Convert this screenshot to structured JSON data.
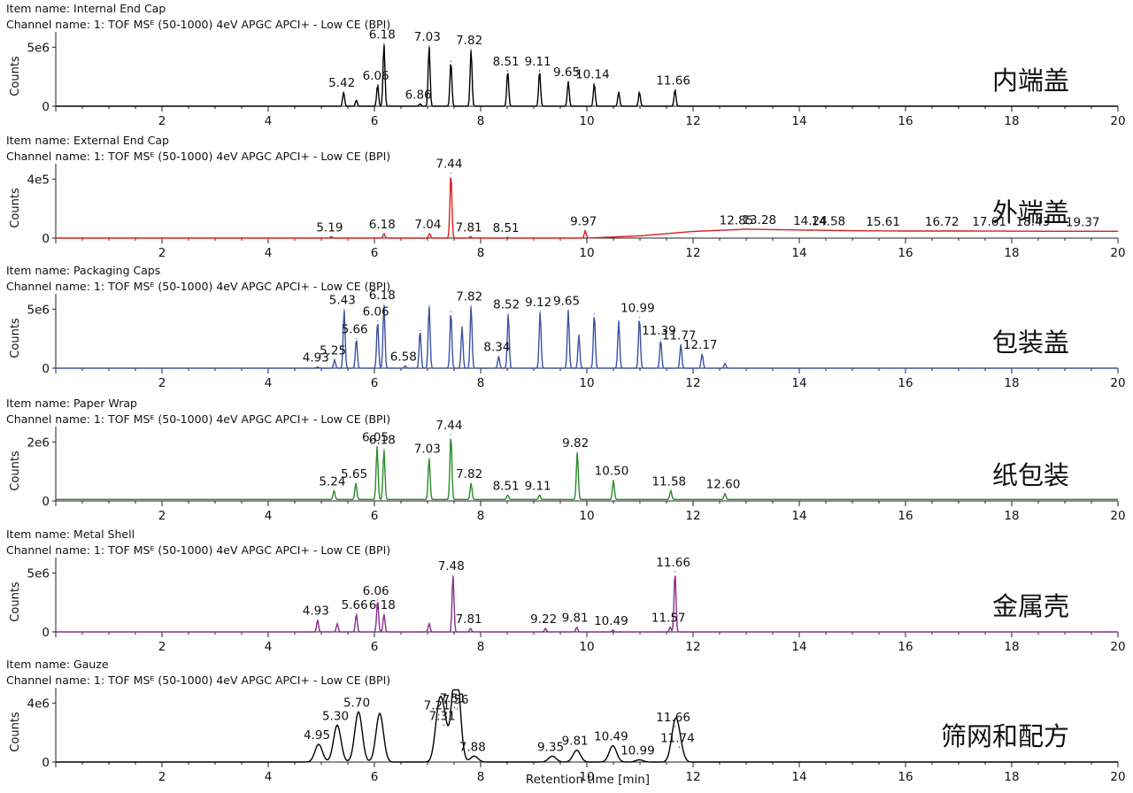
{
  "x_axis_label": "Retention time [min]",
  "chart_data": [
    {
      "type": "line",
      "item_name": "Item name: Internal End Cap",
      "channel_name": "Channel name: 1: TOF MSᴱ (50-1000) 4eV APGC APCI+ - Low CE (BPI)",
      "chinese_label": "内端盖",
      "color": "#000000",
      "ylabel": "Counts",
      "y_tick_label": "5e6",
      "y_tick_value": 5000000,
      "ylim": [
        0,
        6000000
      ],
      "xlim": [
        0,
        20
      ],
      "x_ticks": [
        "2",
        "4",
        "6",
        "8",
        "10",
        "12",
        "14",
        "16",
        "18",
        "20"
      ],
      "series": [
        {
          "baseline": 0,
          "peaks": [
            {
              "rt": 5.42,
              "height": 1200000,
              "label": "5.42"
            },
            {
              "rt": 5.66,
              "height": 500000,
              "label": ""
            },
            {
              "rt": 6.06,
              "height": 1800000,
              "label": "6.06"
            },
            {
              "rt": 6.18,
              "height": 5300000,
              "label": "6.18"
            },
            {
              "rt": 6.86,
              "height": 200000,
              "label": "6.86"
            },
            {
              "rt": 7.03,
              "height": 5100000,
              "label": "7.03"
            },
            {
              "rt": 7.44,
              "height": 3800000,
              "label": ""
            },
            {
              "rt": 7.82,
              "height": 4800000,
              "label": "7.82"
            },
            {
              "rt": 8.51,
              "height": 3000000,
              "label": "8.51"
            },
            {
              "rt": 9.11,
              "height": 3000000,
              "label": "9.11"
            },
            {
              "rt": 9.65,
              "height": 2100000,
              "label": "9.65"
            },
            {
              "rt": 10.14,
              "height": 1900000,
              "label": "10.14"
            },
            {
              "rt": 10.6,
              "height": 1200000,
              "label": ""
            },
            {
              "rt": 10.99,
              "height": 1200000,
              "label": ""
            },
            {
              "rt": 11.66,
              "height": 1400000,
              "label": "11.66"
            }
          ]
        }
      ]
    },
    {
      "type": "line",
      "item_name": "Item name: External End Cap",
      "channel_name": "Channel name: 1: TOF MSᴱ (50-1000) 4eV APGC APCI+ - Low CE (BPI)",
      "chinese_label": "外端盖",
      "color": "#d81f1f",
      "ylabel": "Counts",
      "y_tick_label": "4e5",
      "y_tick_value": 400000,
      "ylim": [
        0,
        480000
      ],
      "xlim": [
        0,
        20
      ],
      "x_ticks": [
        "2",
        "4",
        "6",
        "8",
        "10",
        "12",
        "14",
        "16",
        "18",
        "20"
      ],
      "series": [
        {
          "baseline_points": [
            [
              0,
              0
            ],
            [
              10,
              0
            ],
            [
              11,
              15000
            ],
            [
              12,
              45000
            ],
            [
              13,
              60000
            ],
            [
              14,
              55000
            ],
            [
              15,
              50000
            ],
            [
              16,
              48000
            ],
            [
              17,
              48000
            ],
            [
              18,
              47000
            ],
            [
              19,
              46000
            ],
            [
              20,
              46000
            ]
          ],
          "peaks": [
            {
              "rt": 5.19,
              "height": 10000,
              "label": "5.19"
            },
            {
              "rt": 6.18,
              "height": 30000,
              "label": "6.18"
            },
            {
              "rt": 7.04,
              "height": 30000,
              "label": "7.04"
            },
            {
              "rt": 7.44,
              "height": 440000,
              "label": "7.44"
            },
            {
              "rt": 7.81,
              "height": 10000,
              "label": "7.81"
            },
            {
              "rt": 8.51,
              "height": 5000,
              "label": "8.51"
            },
            {
              "rt": 9.97,
              "height": 50000,
              "label": "9.97"
            },
            {
              "rt": 12.85,
              "height": 0,
              "label": "12.85"
            },
            {
              "rt": 13.28,
              "height": 0,
              "label": "13.28"
            },
            {
              "rt": 14.24,
              "height": 0,
              "label": "14.24"
            },
            {
              "rt": 14.58,
              "height": 0,
              "label": "14.58"
            },
            {
              "rt": 15.61,
              "height": 0,
              "label": "15.61"
            },
            {
              "rt": 16.72,
              "height": 0,
              "label": "16.72"
            },
            {
              "rt": 17.61,
              "height": 0,
              "label": "17.61"
            },
            {
              "rt": 18.43,
              "height": 0,
              "label": "18.43"
            },
            {
              "rt": 19.37,
              "height": 0,
              "label": "19.37"
            }
          ]
        }
      ]
    },
    {
      "type": "line",
      "item_name": "Item name: Packaging Caps",
      "channel_name": "Channel name: 1: TOF MSᴱ (50-1000) 4eV APGC APCI+ - Low CE (BPI)",
      "chinese_label": "包装盖",
      "color": "#3b52a3",
      "ylabel": "Counts",
      "y_tick_label": "5e6",
      "y_tick_value": 5000000,
      "ylim": [
        0,
        6000000
      ],
      "xlim": [
        0,
        20
      ],
      "x_ticks": [
        "2",
        "4",
        "6",
        "8",
        "10",
        "12",
        "14",
        "16",
        "18",
        "20"
      ],
      "series": [
        {
          "baseline": 0,
          "peaks": [
            {
              "rt": 4.93,
              "height": 100000,
              "label": "4.93"
            },
            {
              "rt": 5.25,
              "height": 700000,
              "label": "5.25"
            },
            {
              "rt": 5.43,
              "height": 5000000,
              "label": "5.43"
            },
            {
              "rt": 5.66,
              "height": 2500000,
              "label": "5.66"
            },
            {
              "rt": 6.06,
              "height": 4000000,
              "label": "6.06"
            },
            {
              "rt": 6.18,
              "height": 5400000,
              "label": "6.18"
            },
            {
              "rt": 6.58,
              "height": 200000,
              "label": "6.58"
            },
            {
              "rt": 6.86,
              "height": 3200000,
              "label": ""
            },
            {
              "rt": 7.03,
              "height": 5300000,
              "label": ""
            },
            {
              "rt": 7.44,
              "height": 4800000,
              "label": ""
            },
            {
              "rt": 7.65,
              "height": 3500000,
              "label": ""
            },
            {
              "rt": 7.82,
              "height": 5300000,
              "label": "7.82"
            },
            {
              "rt": 8.34,
              "height": 1000000,
              "label": "8.34"
            },
            {
              "rt": 8.52,
              "height": 4600000,
              "label": "8.52"
            },
            {
              "rt": 9.12,
              "height": 4800000,
              "label": "9.12"
            },
            {
              "rt": 9.65,
              "height": 4900000,
              "label": "9.65"
            },
            {
              "rt": 9.85,
              "height": 2800000,
              "label": ""
            },
            {
              "rt": 10.14,
              "height": 4600000,
              "label": ""
            },
            {
              "rt": 10.6,
              "height": 4000000,
              "label": ""
            },
            {
              "rt": 10.99,
              "height": 4300000,
              "label": "10.99"
            },
            {
              "rt": 11.39,
              "height": 2400000,
              "label": "11.39"
            },
            {
              "rt": 11.77,
              "height": 2000000,
              "label": "11.77"
            },
            {
              "rt": 12.17,
              "height": 1200000,
              "label": "12.17"
            },
            {
              "rt": 12.6,
              "height": 400000,
              "label": ""
            }
          ]
        }
      ]
    },
    {
      "type": "line",
      "item_name": "Item name: Paper Wrap",
      "channel_name": "Channel name: 1: TOF MSᴱ (50-1000) 4eV APGC APCI+ - Low CE (BPI)",
      "chinese_label": "纸包装",
      "color": "#2a8a2a",
      "ylabel": "Counts",
      "y_tick_label": "2e6",
      "y_tick_value": 2000000,
      "ylim": [
        0,
        2400000
      ],
      "xlim": [
        0,
        20
      ],
      "x_ticks": [
        "2",
        "4",
        "6",
        "8",
        "10",
        "12",
        "14",
        "16",
        "18",
        "20"
      ],
      "series": [
        {
          "baseline": 50000,
          "peaks": [
            {
              "rt": 5.24,
              "height": 300000,
              "label": "5.24"
            },
            {
              "rt": 5.65,
              "height": 550000,
              "label": "5.65"
            },
            {
              "rt": 6.05,
              "height": 1800000,
              "label": "6.05"
            },
            {
              "rt": 6.18,
              "height": 1700000,
              "label": "6.18"
            },
            {
              "rt": 7.03,
              "height": 1400000,
              "label": "7.03"
            },
            {
              "rt": 7.44,
              "height": 2200000,
              "label": "7.44"
            },
            {
              "rt": 7.82,
              "height": 550000,
              "label": "7.82"
            },
            {
              "rt": 8.51,
              "height": 150000,
              "label": "8.51"
            },
            {
              "rt": 9.11,
              "height": 150000,
              "label": "9.11"
            },
            {
              "rt": 9.82,
              "height": 1600000,
              "label": "9.82"
            },
            {
              "rt": 10.5,
              "height": 650000,
              "label": "10.50"
            },
            {
              "rt": 11.58,
              "height": 300000,
              "label": "11.58"
            },
            {
              "rt": 12.6,
              "height": 200000,
              "label": "12.60"
            }
          ]
        }
      ]
    },
    {
      "type": "line",
      "item_name": "Item name: Metal Shell",
      "channel_name": "Channel name: 1: TOF MSᴱ (50-1000) 4eV APGC APCI+ - Low CE (BPI)",
      "chinese_label": "金属壳",
      "color": "#8a2b8a",
      "ylabel": "Counts",
      "y_tick_label": "5e6",
      "y_tick_value": 5000000,
      "ylim": [
        0,
        6000000
      ],
      "xlim": [
        0,
        20
      ],
      "x_ticks": [
        "2",
        "4",
        "6",
        "8",
        "10",
        "12",
        "14",
        "16",
        "18",
        "20"
      ],
      "series": [
        {
          "baseline": 0,
          "peaks": [
            {
              "rt": 4.93,
              "height": 1000000,
              "label": "4.93"
            },
            {
              "rt": 5.3,
              "height": 700000,
              "label": ""
            },
            {
              "rt": 5.66,
              "height": 1500000,
              "label": "5.66"
            },
            {
              "rt": 6.06,
              "height": 2700000,
              "label": "6.06"
            },
            {
              "rt": 6.18,
              "height": 1500000,
              "label": "6.18"
            },
            {
              "rt": 7.03,
              "height": 700000,
              "label": ""
            },
            {
              "rt": 7.48,
              "height": 4800000,
              "label": "7.48"
            },
            {
              "rt": 7.81,
              "height": 300000,
              "label": "7.81"
            },
            {
              "rt": 9.22,
              "height": 300000,
              "label": "9.22"
            },
            {
              "rt": 9.81,
              "height": 400000,
              "label": "9.81"
            },
            {
              "rt": 10.49,
              "height": 150000,
              "label": "10.49"
            },
            {
              "rt": 11.57,
              "height": 400000,
              "label": "11.57"
            },
            {
              "rt": 11.66,
              "height": 5100000,
              "label": "11.66"
            }
          ]
        }
      ]
    },
    {
      "type": "line",
      "item_name": "Item name: Gauze",
      "channel_name": "Channel name: 1: TOF MSᴱ (50-1000) 4eV APGC APCI+ - Low CE (BPI)",
      "chinese_label": "筛网和配方",
      "color": "#000000",
      "ylabel": "Counts",
      "y_tick_label": "4e6",
      "y_tick_value": 4000000,
      "ylim": [
        0,
        4800000
      ],
      "xlim": [
        0,
        20
      ],
      "x_ticks": [
        "2",
        "4",
        "6",
        "8",
        "10",
        "12",
        "14",
        "16",
        "18",
        "20"
      ],
      "series": [
        {
          "baseline": 0,
          "peaks": [
            {
              "rt": 4.95,
              "height": 1200000,
              "label": "4.95"
            },
            {
              "rt": 5.3,
              "height": 2500000,
              "label": "5.30"
            },
            {
              "rt": 5.7,
              "height": 3400000,
              "label": "5.70"
            },
            {
              "rt": 6.1,
              "height": 3300000,
              "label": ""
            },
            {
              "rt": 7.21,
              "height": 3200000,
              "label": "7.21"
            },
            {
              "rt": 7.31,
              "height": 2500000,
              "label": "7.31"
            },
            {
              "rt": 7.51,
              "height": 3700000,
              "label": "7.51"
            },
            {
              "rt": 7.56,
              "height": 3600000,
              "label": "7.56"
            },
            {
              "rt": 7.88,
              "height": 400000,
              "label": "7.88"
            },
            {
              "rt": 9.35,
              "height": 400000,
              "label": "9.35"
            },
            {
              "rt": 9.81,
              "height": 800000,
              "label": "9.81"
            },
            {
              "rt": 10.49,
              "height": 1100000,
              "label": "10.49"
            },
            {
              "rt": 10.99,
              "height": 150000,
              "label": "10.99"
            },
            {
              "rt": 11.66,
              "height": 2400000,
              "label": "11.66"
            },
            {
              "rt": 11.74,
              "height": 1000000,
              "label": "11.74"
            }
          ]
        }
      ]
    }
  ]
}
